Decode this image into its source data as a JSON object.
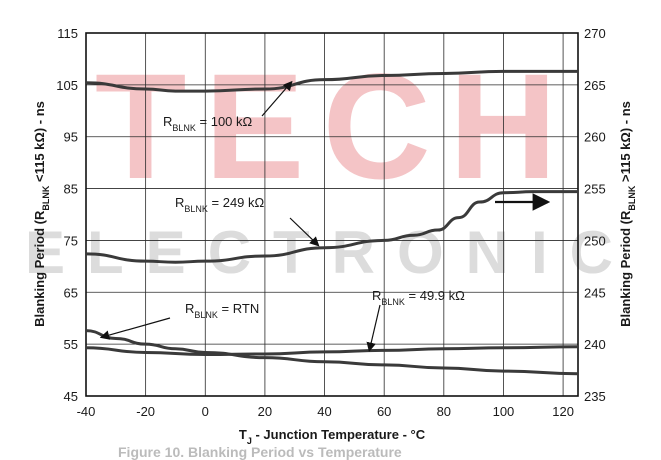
{
  "chart_data": {
    "type": "line",
    "x_title_main": "T",
    "x_title_sub": "J",
    "x_title_rest": " - Junction Temperature - °C",
    "y_left_title": {
      "pre": "Blanking Period (R",
      "sub": "BLNK",
      "post": " <115 kΩ) - ns"
    },
    "y_right_title": {
      "pre": "Blanking Period (R",
      "sub": "BLNK",
      "post": " >115 kΩ) - ns"
    },
    "xlim": [
      -40,
      125
    ],
    "x_ticks": [
      -40,
      -20,
      0,
      20,
      40,
      60,
      80,
      100,
      120
    ],
    "ylim_left": [
      45,
      115
    ],
    "y_left_ticks": [
      45,
      55,
      65,
      75,
      85,
      95,
      105,
      115
    ],
    "ylim_right": [
      235,
      270
    ],
    "y_right_ticks": [
      235,
      240,
      245,
      250,
      255,
      260,
      265,
      270
    ],
    "grid": true,
    "series": [
      {
        "name": "RBLNK = 100 kΩ",
        "axis": "right",
        "points": [
          [
            -40,
            265.2
          ],
          [
            -20,
            264.6
          ],
          [
            -10,
            264.4
          ],
          [
            0,
            264.4
          ],
          [
            20,
            264.6
          ],
          [
            40,
            265.5
          ],
          [
            60,
            265.9
          ],
          [
            80,
            266.1
          ],
          [
            100,
            266.3
          ],
          [
            125,
            266.3
          ]
        ]
      },
      {
        "name": "RBLNK = 249 kΩ",
        "axis": "right",
        "points": [
          [
            -40,
            248.7
          ],
          [
            -20,
            248.0
          ],
          [
            -10,
            247.9
          ],
          [
            0,
            248.0
          ],
          [
            20,
            248.5
          ],
          [
            40,
            249.3
          ],
          [
            60,
            250.0
          ],
          [
            70,
            250.5
          ],
          [
            78,
            251.0
          ],
          [
            85,
            252.2
          ],
          [
            92,
            253.7
          ],
          [
            100,
            254.6
          ],
          [
            110,
            254.7
          ],
          [
            125,
            254.7
          ]
        ]
      },
      {
        "name": "RBLNK = RTN",
        "axis": "left",
        "points": [
          [
            -40,
            57.6
          ],
          [
            -30,
            56.1
          ],
          [
            -20,
            55.0
          ],
          [
            -10,
            54.1
          ],
          [
            0,
            53.4
          ],
          [
            20,
            52.4
          ],
          [
            40,
            51.6
          ],
          [
            60,
            51.0
          ],
          [
            80,
            50.4
          ],
          [
            100,
            49.8
          ],
          [
            125,
            49.3
          ]
        ]
      },
      {
        "name": "RBLNK = 49.9 kΩ",
        "axis": "left",
        "points": [
          [
            -40,
            54.3
          ],
          [
            -20,
            53.4
          ],
          [
            0,
            53.0
          ],
          [
            20,
            53.1
          ],
          [
            40,
            53.5
          ],
          [
            60,
            53.8
          ],
          [
            80,
            54.1
          ],
          [
            100,
            54.3
          ],
          [
            125,
            54.5
          ]
        ]
      }
    ],
    "annotations": [
      {
        "pre": "R",
        "sub": "BLNK",
        "post": " = 100 kΩ"
      },
      {
        "pre": "R",
        "sub": "BLNK",
        "post": " = 249 kΩ"
      },
      {
        "pre": "R",
        "sub": "BLNK",
        "post": " = RTN"
      },
      {
        "pre": "R",
        "sub": "BLNK",
        "post": " = 49.9 kΩ"
      }
    ]
  },
  "caption": "Figure 10. Blanking Period vs Temperature",
  "colors": {
    "line": "#3a3a3a",
    "grid": "#2a2a2a",
    "watermark_red": "#f4c4c6",
    "watermark_gray": "#dcdcdc"
  },
  "watermark": {
    "line1": "TECH",
    "line2": "ELECTRONIC"
  }
}
